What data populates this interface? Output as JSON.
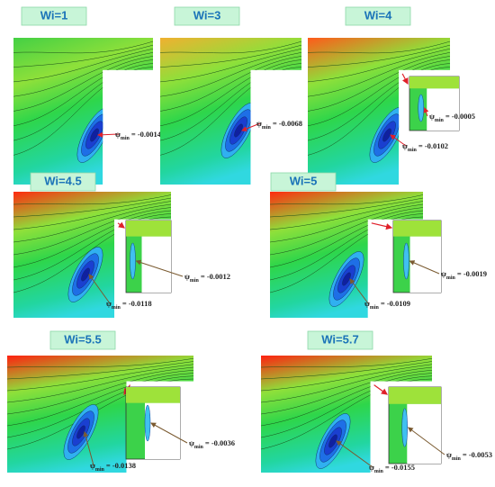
{
  "panels": [
    {
      "title": "Wi=1",
      "annotations": [
        {
          "symbol": "ψ",
          "sub": "min",
          "text": "= -0.0014"
        }
      ]
    },
    {
      "title": "Wi=3",
      "annotations": [
        {
          "symbol": "ψ",
          "sub": "min",
          "text": "= -0.0068"
        }
      ]
    },
    {
      "title": "Wi=4",
      "annotations": [
        {
          "symbol": "ψ",
          "sub": "min",
          "text": "= -0.0102"
        },
        {
          "symbol": "ψ",
          "sub": "min",
          "text": "= -0.0005"
        }
      ]
    },
    {
      "title": "Wi=4.5",
      "annotations": [
        {
          "symbol": "ψ",
          "sub": "min",
          "text": "= -0.0118"
        },
        {
          "symbol": "ψ",
          "sub": "min",
          "text": "= -0.0012"
        }
      ]
    },
    {
      "title": "Wi=5",
      "annotations": [
        {
          "symbol": "ψ",
          "sub": "min",
          "text": "= -0.0109"
        },
        {
          "symbol": "ψ",
          "sub": "min",
          "text": "= -0.0019"
        }
      ]
    },
    {
      "title": "Wi=5.5",
      "annotations": [
        {
          "symbol": "ψ",
          "sub": "min",
          "text": "= -0.0138"
        },
        {
          "symbol": "ψ",
          "sub": "min",
          "text": "= -0.0036"
        }
      ]
    },
    {
      "title": "Wi=5.7",
      "annotations": [
        {
          "symbol": "ψ",
          "sub": "min",
          "text": "= -0.0155"
        },
        {
          "symbol": "ψ",
          "sub": "min",
          "text": "= -0.0053"
        }
      ]
    }
  ]
}
